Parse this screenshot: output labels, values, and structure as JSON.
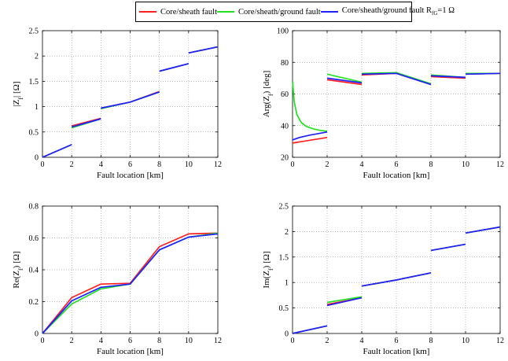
{
  "legend": [
    {
      "label": "Core/sheath fault",
      "color": "#ff1f1f"
    },
    {
      "label": "Core/sheath/ground fault",
      "color": "#22e022"
    },
    {
      "label": "Core/sheath/ground fault R",
      "sub": "fG",
      "suffix": "=1 Ω",
      "color": "#1f1fff"
    }
  ],
  "chart_data": [
    {
      "type": "line",
      "xlabel": "Fault location [km]",
      "ylabel": "|Z_f| [Ω]",
      "ylabel_main": "|Z",
      "ylabel_sub": "f",
      "ylabel_post": "| [Ω]",
      "xlim": [
        0,
        12
      ],
      "ylim": [
        0,
        2.5
      ],
      "xticks": [
        0,
        2,
        4,
        6,
        8,
        10,
        12
      ],
      "yticks": [
        0,
        0.5,
        1,
        1.5,
        2,
        2.5
      ],
      "ytick_labels": [
        "0",
        "0.5",
        "1",
        "1.5",
        "2",
        "2.5"
      ],
      "grid": true,
      "series": [
        {
          "name": "Core/sheath fault",
          "color": "#ff1f1f",
          "segments": [
            [
              [
                0,
                0.0
              ],
              [
                2,
                0.25
              ]
            ],
            [
              [
                2,
                0.62
              ],
              [
                4,
                0.77
              ]
            ],
            [
              [
                4,
                0.97
              ],
              [
                6,
                1.09
              ],
              [
                8,
                1.3
              ]
            ],
            [
              [
                8,
                1.7
              ],
              [
                10,
                1.85
              ]
            ],
            [
              [
                10,
                2.06
              ],
              [
                12,
                2.18
              ]
            ]
          ]
        },
        {
          "name": "Core/sheath/ground fault",
          "color": "#22e022",
          "segments": [
            [
              [
                0,
                0.0
              ],
              [
                2,
                0.25
              ]
            ],
            [
              [
                2,
                0.58
              ],
              [
                4,
                0.76
              ]
            ],
            [
              [
                4,
                0.96
              ],
              [
                6,
                1.09
              ],
              [
                8,
                1.29
              ]
            ],
            [
              [
                8,
                1.7
              ],
              [
                10,
                1.85
              ]
            ],
            [
              [
                10,
                2.06
              ],
              [
                12,
                2.18
              ]
            ]
          ]
        },
        {
          "name": "Core/sheath/ground fault R_fG=1 Ω",
          "color": "#1f1fff",
          "segments": [
            [
              [
                0,
                0.0
              ],
              [
                2,
                0.25
              ]
            ],
            [
              [
                2,
                0.6
              ],
              [
                4,
                0.76
              ]
            ],
            [
              [
                4,
                0.97
              ],
              [
                6,
                1.09
              ],
              [
                8,
                1.29
              ]
            ],
            [
              [
                8,
                1.7
              ],
              [
                10,
                1.85
              ]
            ],
            [
              [
                10,
                2.06
              ],
              [
                12,
                2.18
              ]
            ]
          ]
        }
      ]
    },
    {
      "type": "line",
      "xlabel": "Fault location [km]",
      "ylabel": "Arg(Z_f) [deg]",
      "ylabel_main": "Arg(Z",
      "ylabel_sub": "f",
      "ylabel_post": ") [deg]",
      "xlim": [
        0,
        12
      ],
      "ylim": [
        20,
        100
      ],
      "xticks": [
        0,
        2,
        4,
        6,
        8,
        10,
        12
      ],
      "yticks": [
        20,
        40,
        60,
        80,
        100
      ],
      "ytick_labels": [
        "20",
        "40",
        "60",
        "80",
        "100"
      ],
      "grid": true,
      "series": [
        {
          "name": "Core/sheath fault",
          "color": "#ff1f1f",
          "segments": [
            [
              [
                0,
                29
              ],
              [
                2,
                32.5
              ]
            ],
            [
              [
                2,
                69
              ],
              [
                4,
                66
              ]
            ],
            [
              [
                4,
                72
              ],
              [
                6,
                73
              ],
              [
                8,
                66
              ]
            ],
            [
              [
                8,
                71
              ],
              [
                10,
                70
              ]
            ],
            [
              [
                10,
                72.5
              ],
              [
                12,
                73
              ]
            ]
          ]
        },
        {
          "name": "Core/sheath/ground fault",
          "color": "#22e022",
          "segments": [
            [
              [
                0,
                68
              ],
              [
                0.1,
                55
              ],
              [
                0.25,
                47
              ],
              [
                0.5,
                42
              ],
              [
                0.8,
                39.5
              ],
              [
                1.2,
                38
              ],
              [
                1.6,
                37
              ],
              [
                2,
                36.5
              ]
            ],
            [
              [
                2,
                72.5
              ],
              [
                4,
                67.5
              ]
            ],
            [
              [
                4,
                73
              ],
              [
                6,
                73.5
              ],
              [
                8,
                66.5
              ]
            ],
            [
              [
                8,
                72
              ],
              [
                10,
                70.5
              ]
            ],
            [
              [
                10,
                73
              ],
              [
                12,
                73
              ]
            ]
          ]
        },
        {
          "name": "Core/sheath/ground fault R_fG=1 Ω",
          "color": "#1f1fff",
          "segments": [
            [
              [
                0,
                31
              ],
              [
                0.4,
                32.5
              ],
              [
                1,
                34
              ],
              [
                2,
                36
              ]
            ],
            [
              [
                2,
                70
              ],
              [
                4,
                67
              ]
            ],
            [
              [
                4,
                72.5
              ],
              [
                6,
                73
              ],
              [
                8,
                66
              ]
            ],
            [
              [
                8,
                71.5
              ],
              [
                10,
                70.5
              ]
            ],
            [
              [
                10,
                72.5
              ],
              [
                12,
                73
              ]
            ]
          ]
        }
      ]
    },
    {
      "type": "line",
      "xlabel": "Fault location [km]",
      "ylabel": "Re(Z_f) [Ω]",
      "ylabel_main": "Re(Z",
      "ylabel_sub": "f",
      "ylabel_post": ") [Ω]",
      "xlim": [
        0,
        12
      ],
      "ylim": [
        0,
        0.8
      ],
      "xticks": [
        0,
        2,
        4,
        6,
        8,
        10,
        12
      ],
      "yticks": [
        0,
        0.2,
        0.4,
        0.6,
        0.8
      ],
      "ytick_labels": [
        "0",
        "0.2",
        "0.4",
        "0.6",
        "0.8"
      ],
      "grid": true,
      "series": [
        {
          "name": "Core/sheath fault",
          "color": "#ff1f1f",
          "segments": [
            [
              [
                0,
                0
              ],
              [
                2,
                0.225
              ],
              [
                4,
                0.31
              ],
              [
                6,
                0.315
              ],
              [
                8,
                0.545
              ],
              [
                10,
                0.625
              ],
              [
                12,
                0.63
              ]
            ]
          ]
        },
        {
          "name": "Core/sheath/ground fault",
          "color": "#22e022",
          "segments": [
            [
              [
                0,
                0
              ],
              [
                2,
                0.185
              ],
              [
                4,
                0.28
              ],
              [
                6,
                0.31
              ],
              [
                8,
                0.525
              ],
              [
                10,
                0.605
              ],
              [
                12,
                0.63
              ]
            ]
          ]
        },
        {
          "name": "Core/sheath/ground fault R_fG=1 Ω",
          "color": "#1f1fff",
          "segments": [
            [
              [
                0,
                0
              ],
              [
                2,
                0.205
              ],
              [
                4,
                0.29
              ],
              [
                6,
                0.31
              ],
              [
                8,
                0.525
              ],
              [
                10,
                0.605
              ],
              [
                12,
                0.625
              ]
            ]
          ]
        }
      ]
    },
    {
      "type": "line",
      "xlabel": "Fault location [km]",
      "ylabel": "Im(Z_f) [Ω]",
      "ylabel_main": "Im(Z",
      "ylabel_sub": "f",
      "ylabel_post": ") [Ω]",
      "xlim": [
        0,
        12
      ],
      "ylim": [
        0,
        2.5
      ],
      "xticks": [
        0,
        2,
        4,
        6,
        8,
        10,
        12
      ],
      "yticks": [
        0,
        0.5,
        1,
        1.5,
        2,
        2.5
      ],
      "ytick_labels": [
        "0",
        "0.5",
        "1",
        "1.5",
        "2",
        "2.5"
      ],
      "grid": true,
      "series": [
        {
          "name": "Core/sheath fault",
          "color": "#ff1f1f",
          "segments": [
            [
              [
                0,
                0.0
              ],
              [
                2,
                0.15
              ]
            ],
            [
              [
                2,
                0.57
              ],
              [
                4,
                0.7
              ]
            ],
            [
              [
                4,
                0.93
              ],
              [
                6,
                1.05
              ],
              [
                8,
                1.19
              ]
            ],
            [
              [
                8,
                1.63
              ],
              [
                10,
                1.75
              ]
            ],
            [
              [
                10,
                1.97
              ],
              [
                12,
                2.09
              ]
            ]
          ]
        },
        {
          "name": "Core/sheath/ground fault",
          "color": "#22e022",
          "segments": [
            [
              [
                0,
                0.0
              ],
              [
                2,
                0.15
              ]
            ],
            [
              [
                2,
                0.61
              ],
              [
                4,
                0.72
              ]
            ],
            [
              [
                4,
                0.93
              ],
              [
                6,
                1.05
              ],
              [
                8,
                1.19
              ]
            ],
            [
              [
                8,
                1.63
              ],
              [
                10,
                1.75
              ]
            ],
            [
              [
                10,
                1.97
              ],
              [
                12,
                2.09
              ]
            ]
          ]
        },
        {
          "name": "Core/sheath/ground fault R_fG=1 Ω",
          "color": "#1f1fff",
          "segments": [
            [
              [
                0,
                0.0
              ],
              [
                2,
                0.15
              ]
            ],
            [
              [
                2,
                0.55
              ],
              [
                4,
                0.7
              ]
            ],
            [
              [
                4,
                0.93
              ],
              [
                6,
                1.05
              ],
              [
                8,
                1.19
              ]
            ],
            [
              [
                8,
                1.63
              ],
              [
                10,
                1.75
              ]
            ],
            [
              [
                10,
                1.97
              ],
              [
                12,
                2.09
              ]
            ]
          ]
        }
      ]
    }
  ]
}
